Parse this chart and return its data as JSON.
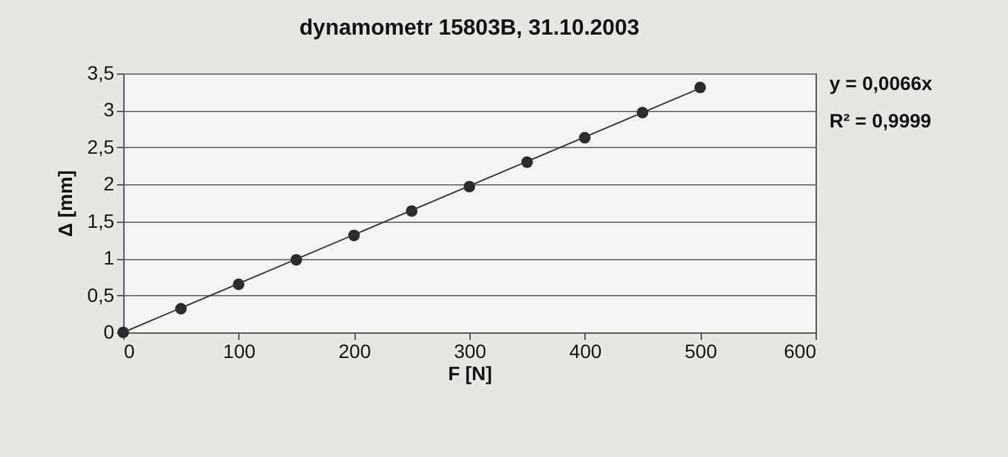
{
  "chart_data": {
    "type": "scatter",
    "title": "dynamometr 15803B, 31.10.2003",
    "xlabel": "F [N]",
    "ylabel": "Δ [mm]",
    "x": [
      0,
      50,
      100,
      150,
      200,
      250,
      300,
      350,
      400,
      450,
      500
    ],
    "series": [
      {
        "color": "#2b2b2b",
        "marker": "circle",
        "values": [
          0,
          0.32,
          0.65,
          0.98,
          1.31,
          1.64,
          1.97,
          2.3,
          2.63,
          2.97,
          3.31
        ]
      },
      {
        "type": "line",
        "marker": "none",
        "color": "#333333",
        "x": [
          0,
          500
        ],
        "values": [
          0,
          3.3
        ]
      }
    ],
    "xlim": [
      0,
      600
    ],
    "xticks": [
      0,
      100,
      200,
      300,
      400,
      500,
      600
    ],
    "ylim": [
      0,
      3.5
    ],
    "yticks": [
      0,
      {
        "value": 0.5,
        "label": "0,5"
      },
      1,
      {
        "value": 1.5,
        "label": "1,5"
      },
      2,
      {
        "value": 2.5,
        "label": "2,5"
      },
      3,
      {
        "value": 3.5,
        "label": "3,5"
      }
    ],
    "grid": "y",
    "annotations": [
      "y = 0,0066x",
      "R² = 0,9999"
    ]
  }
}
